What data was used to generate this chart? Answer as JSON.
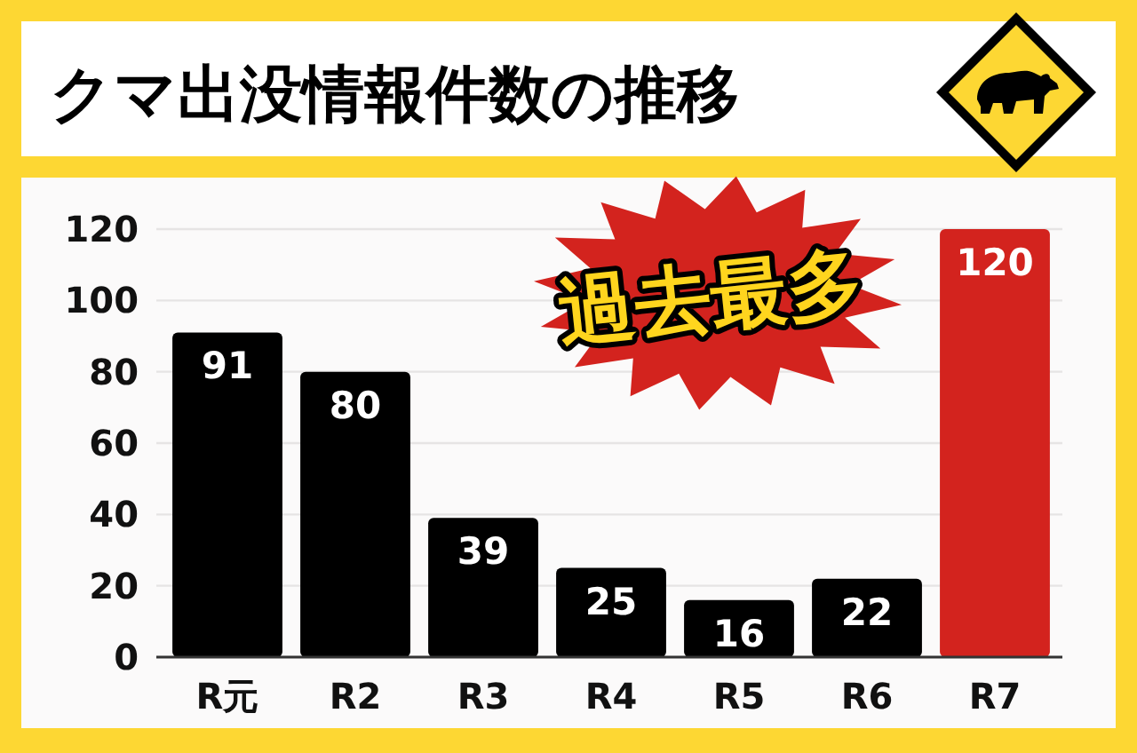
{
  "chart_data": {
    "type": "bar",
    "title": "クマ出没情報件数の推移",
    "categories": [
      "R元",
      "R2",
      "R3",
      "R4",
      "R5",
      "R6",
      "R7"
    ],
    "values": [
      91,
      80,
      39,
      25,
      16,
      22,
      120
    ],
    "colors": [
      "#000000",
      "#000000",
      "#000000",
      "#000000",
      "#000000",
      "#000000",
      "#d3231e"
    ],
    "ylim": [
      0,
      120
    ],
    "yticks": [
      0,
      20,
      40,
      60,
      80,
      100,
      120
    ],
    "grid": "y",
    "data_labels": true,
    "annotations": [
      "過去最多"
    ]
  }
}
